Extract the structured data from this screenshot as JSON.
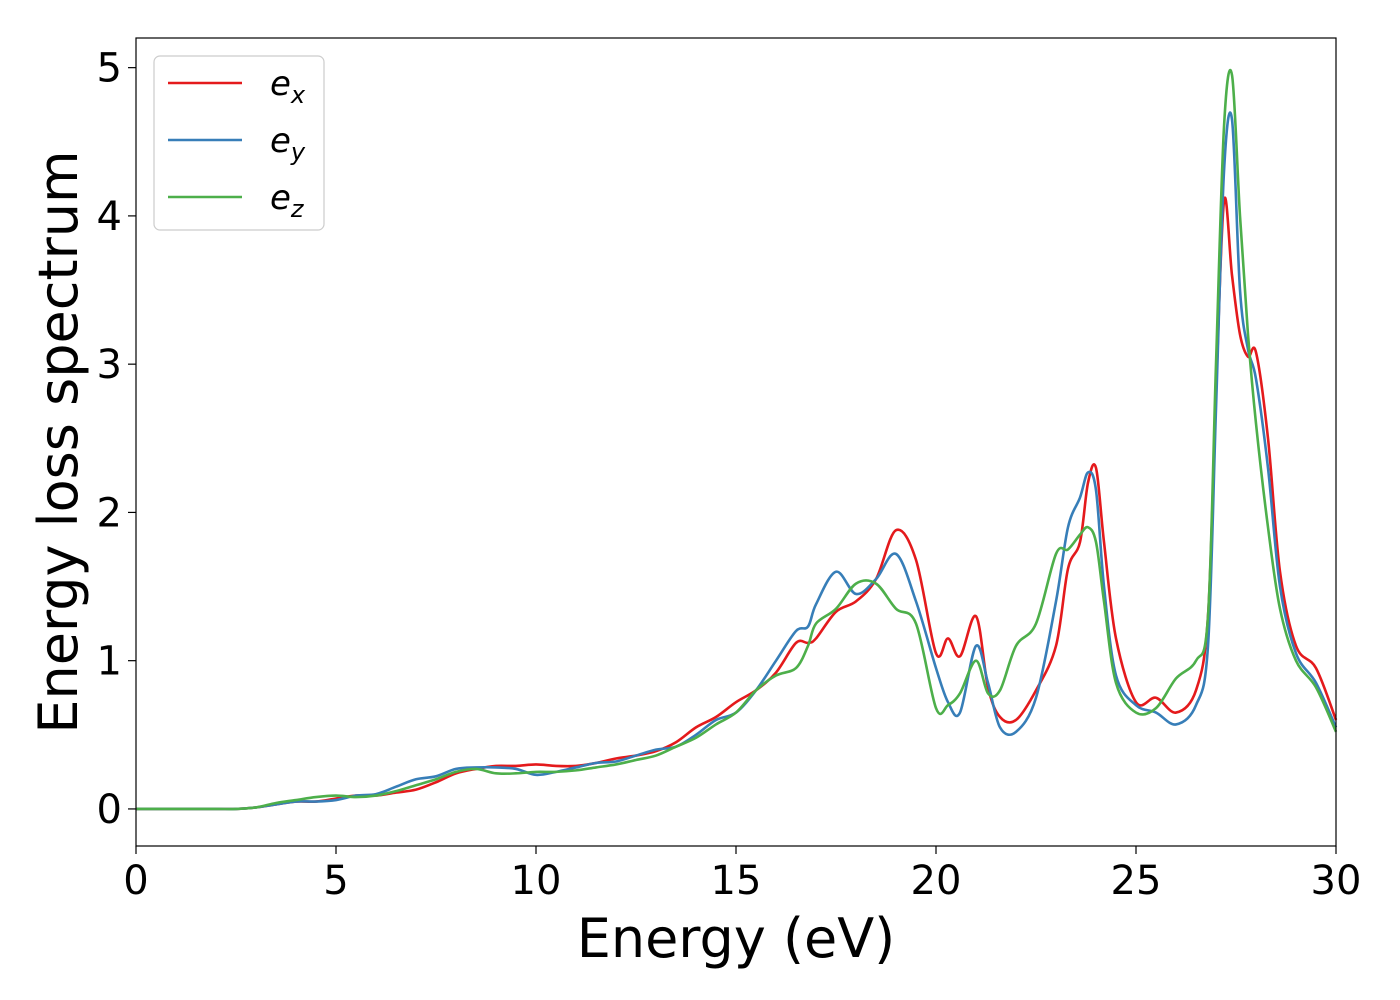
{
  "chart_data": {
    "type": "line",
    "title": "",
    "xlabel": "Energy (eV)",
    "ylabel": "Energy loss spectrum",
    "xlim": [
      0,
      30
    ],
    "ylim": [
      -0.25,
      5.2
    ],
    "xticks": [
      0,
      5,
      10,
      15,
      20,
      25,
      30
    ],
    "yticks": [
      0,
      1,
      2,
      3,
      4,
      5
    ],
    "grid": false,
    "legend_position": "top-left",
    "x": [
      0,
      1,
      2,
      2.5,
      3,
      3.5,
      4,
      4.5,
      5,
      5.5,
      6,
      6.5,
      7,
      7.5,
      8,
      8.5,
      9,
      9.5,
      10,
      10.5,
      11,
      11.5,
      12,
      12.5,
      13,
      13.5,
      14,
      14.5,
      15,
      15.5,
      16,
      16.5,
      16.8,
      17,
      17.5,
      18,
      18.5,
      19,
      19.5,
      20,
      20.3,
      20.6,
      21,
      21.3,
      21.6,
      22,
      22.5,
      23,
      23.3,
      23.6,
      23.8,
      24,
      24.2,
      24.5,
      25,
      25.5,
      26,
      26.5,
      26.8,
      27,
      27.2,
      27.4,
      27.6,
      27.8,
      28,
      28.3,
      28.6,
      29,
      29.5,
      30
    ],
    "series": [
      {
        "name": "e",
        "subscript": "x",
        "color": "#e41a1c",
        "values": [
          0,
          0,
          0,
          0,
          0.01,
          0.03,
          0.05,
          0.05,
          0.07,
          0.09,
          0.09,
          0.11,
          0.13,
          0.18,
          0.24,
          0.27,
          0.29,
          0.29,
          0.3,
          0.29,
          0.29,
          0.31,
          0.34,
          0.36,
          0.39,
          0.45,
          0.55,
          0.62,
          0.72,
          0.8,
          0.92,
          1.12,
          1.12,
          1.15,
          1.33,
          1.4,
          1.55,
          1.88,
          1.68,
          1.05,
          1.15,
          1.03,
          1.3,
          0.82,
          0.62,
          0.6,
          0.8,
          1.1,
          1.62,
          1.8,
          2.2,
          2.3,
          1.8,
          1.15,
          0.72,
          0.75,
          0.65,
          0.8,
          1.3,
          2.8,
          4.1,
          3.6,
          3.2,
          3.05,
          3.08,
          2.5,
          1.6,
          1.1,
          0.95,
          0.6
        ]
      },
      {
        "name": "e",
        "subscript": "y",
        "color": "#377eb8",
        "values": [
          0,
          0,
          0,
          0,
          0.01,
          0.03,
          0.05,
          0.05,
          0.06,
          0.09,
          0.1,
          0.15,
          0.2,
          0.22,
          0.27,
          0.28,
          0.28,
          0.27,
          0.23,
          0.25,
          0.28,
          0.31,
          0.32,
          0.36,
          0.4,
          0.42,
          0.5,
          0.6,
          0.65,
          0.8,
          1.0,
          1.2,
          1.23,
          1.38,
          1.6,
          1.45,
          1.55,
          1.72,
          1.4,
          0.95,
          0.72,
          0.65,
          1.1,
          0.85,
          0.55,
          0.52,
          0.75,
          1.4,
          1.9,
          2.1,
          2.27,
          2.15,
          1.5,
          0.9,
          0.7,
          0.65,
          0.57,
          0.7,
          1.1,
          2.7,
          4.3,
          4.65,
          3.5,
          3.1,
          2.9,
          2.3,
          1.5,
          1.05,
          0.85,
          0.55
        ]
      },
      {
        "name": "e",
        "subscript": "z",
        "color": "#4daf4a",
        "values": [
          0,
          0,
          0,
          0,
          0.01,
          0.04,
          0.06,
          0.08,
          0.09,
          0.08,
          0.09,
          0.12,
          0.16,
          0.2,
          0.25,
          0.27,
          0.24,
          0.24,
          0.25,
          0.25,
          0.26,
          0.28,
          0.3,
          0.33,
          0.36,
          0.42,
          0.48,
          0.57,
          0.65,
          0.8,
          0.9,
          0.95,
          1.1,
          1.25,
          1.35,
          1.52,
          1.52,
          1.35,
          1.25,
          0.68,
          0.7,
          0.78,
          1.0,
          0.78,
          0.8,
          1.1,
          1.25,
          1.72,
          1.75,
          1.85,
          1.9,
          1.8,
          1.4,
          0.85,
          0.65,
          0.68,
          0.88,
          1.0,
          1.3,
          3.0,
          4.6,
          4.95,
          4.0,
          3.2,
          2.6,
          1.9,
          1.35,
          1.0,
          0.82,
          0.52
        ]
      }
    ]
  }
}
